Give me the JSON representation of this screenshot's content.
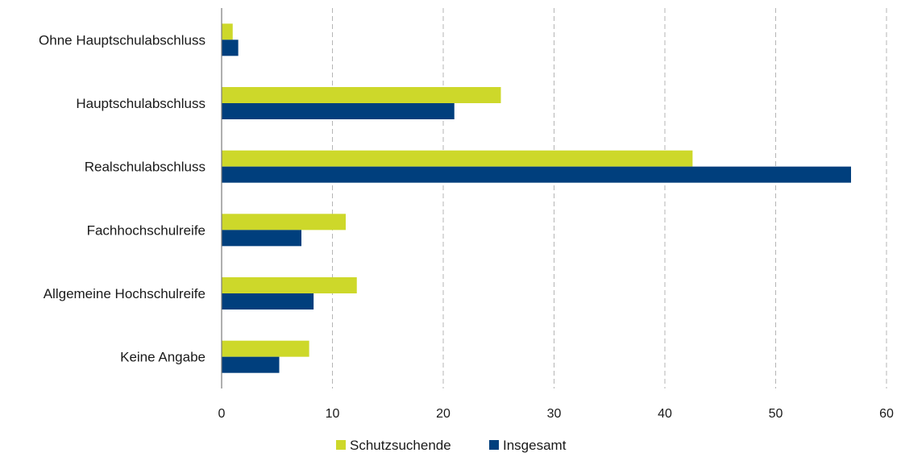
{
  "chart_data": {
    "type": "bar",
    "orientation": "horizontal",
    "title": "",
    "xlabel": "",
    "ylabel": "",
    "xlim": [
      0,
      60
    ],
    "x_ticks": [
      0,
      10,
      20,
      30,
      40,
      50,
      60
    ],
    "grid": "vertical-dashed",
    "legend_position": "bottom",
    "categories": [
      "Ohne Hauptschulabschluss",
      "Hauptschulabschluss",
      "Realschulabschluss",
      "Fachhochschulreife",
      "Allgemeine Hochschulreife",
      "Keine Angabe"
    ],
    "series": [
      {
        "name": "Schutzsuchende",
        "color": "#cdd82a",
        "values": [
          1.0,
          25.2,
          42.5,
          11.2,
          12.2,
          7.9
        ]
      },
      {
        "name": "Insgesamt",
        "color": "#003f7d",
        "values": [
          1.5,
          21.0,
          56.8,
          7.2,
          8.3,
          5.2
        ]
      }
    ]
  }
}
